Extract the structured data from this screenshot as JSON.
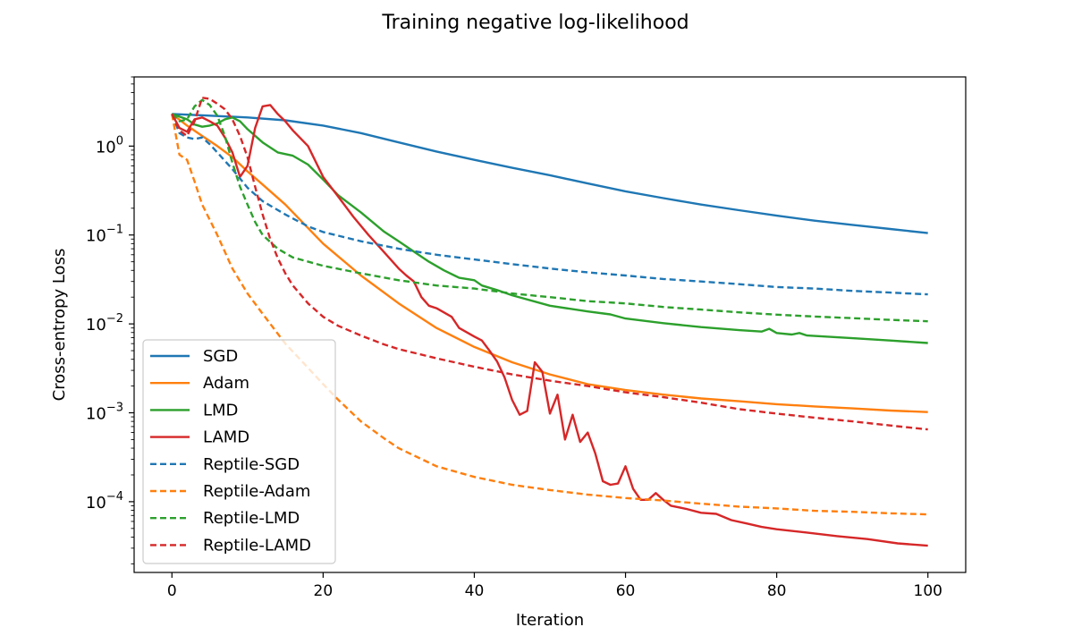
{
  "chart_data": {
    "type": "line",
    "title": "Training negative log-likelihood",
    "xlabel": "Iteration",
    "ylabel": "Cross-entropy Loss",
    "yscale": "log",
    "xlim": [
      -5,
      105
    ],
    "ylim": [
      1.6e-05,
      6.0
    ],
    "xticks": [
      0,
      20,
      40,
      60,
      80,
      100
    ],
    "yticks": [
      {
        "value": 1,
        "base": "10",
        "exp": "0"
      },
      {
        "value": 0.1,
        "base": "10",
        "exp": "−1"
      },
      {
        "value": 0.01,
        "base": "10",
        "exp": "−2"
      },
      {
        "value": 0.001,
        "base": "10",
        "exp": "−3"
      },
      {
        "value": 0.0001,
        "base": "10",
        "exp": "−4"
      }
    ],
    "grid": false,
    "legend": {
      "placement": "lower-left"
    },
    "series": [
      {
        "name": "SGD",
        "color": "#1f77b4",
        "style": "solid",
        "points": [
          [
            0,
            2.3
          ],
          [
            5,
            2.2
          ],
          [
            10,
            2.1
          ],
          [
            15,
            1.95
          ],
          [
            20,
            1.7
          ],
          [
            25,
            1.4
          ],
          [
            30,
            1.1
          ],
          [
            35,
            0.87
          ],
          [
            40,
            0.7
          ],
          [
            45,
            0.57
          ],
          [
            50,
            0.47
          ],
          [
            55,
            0.38
          ],
          [
            60,
            0.31
          ],
          [
            65,
            0.26
          ],
          [
            70,
            0.22
          ],
          [
            75,
            0.19
          ],
          [
            80,
            0.165
          ],
          [
            85,
            0.145
          ],
          [
            90,
            0.13
          ],
          [
            95,
            0.117
          ],
          [
            100,
            0.105
          ]
        ]
      },
      {
        "name": "Adam",
        "color": "#ff7f0e",
        "style": "solid",
        "points": [
          [
            0,
            2.3
          ],
          [
            2,
            1.7
          ],
          [
            4,
            1.3
          ],
          [
            6,
            1.0
          ],
          [
            8,
            0.75
          ],
          [
            10,
            0.52
          ],
          [
            12,
            0.37
          ],
          [
            15,
            0.22
          ],
          [
            18,
            0.12
          ],
          [
            20,
            0.08
          ],
          [
            25,
            0.035
          ],
          [
            30,
            0.017
          ],
          [
            35,
            0.009
          ],
          [
            40,
            0.0055
          ],
          [
            45,
            0.0037
          ],
          [
            50,
            0.0027
          ],
          [
            55,
            0.0021
          ],
          [
            60,
            0.0018
          ],
          [
            65,
            0.0016
          ],
          [
            70,
            0.00145
          ],
          [
            75,
            0.00135
          ],
          [
            80,
            0.00125
          ],
          [
            85,
            0.00118
          ],
          [
            90,
            0.00112
          ],
          [
            95,
            0.00106
          ],
          [
            100,
            0.00102
          ]
        ]
      },
      {
        "name": "LMD",
        "color": "#2ca02c",
        "style": "solid",
        "points": [
          [
            0,
            2.3
          ],
          [
            2,
            2.0
          ],
          [
            3,
            1.75
          ],
          [
            4,
            1.65
          ],
          [
            5,
            1.7
          ],
          [
            6,
            1.8
          ],
          [
            7,
            2.0
          ],
          [
            8,
            2.1
          ],
          [
            9,
            1.9
          ],
          [
            10,
            1.55
          ],
          [
            12,
            1.1
          ],
          [
            14,
            0.85
          ],
          [
            16,
            0.78
          ],
          [
            18,
            0.62
          ],
          [
            20,
            0.42
          ],
          [
            22,
            0.28
          ],
          [
            25,
            0.18
          ],
          [
            28,
            0.11
          ],
          [
            30,
            0.085
          ],
          [
            32,
            0.065
          ],
          [
            34,
            0.05
          ],
          [
            36,
            0.04
          ],
          [
            38,
            0.033
          ],
          [
            40,
            0.031
          ],
          [
            41,
            0.027
          ],
          [
            43,
            0.024
          ],
          [
            45,
            0.021
          ],
          [
            50,
            0.016
          ],
          [
            55,
            0.0138
          ],
          [
            58,
            0.0128
          ],
          [
            60,
            0.0115
          ],
          [
            65,
            0.0102
          ],
          [
            70,
            0.0092
          ],
          [
            75,
            0.0085
          ],
          [
            78,
            0.0082
          ],
          [
            79,
            0.0088
          ],
          [
            80,
            0.0079
          ],
          [
            82,
            0.0076
          ],
          [
            83,
            0.0079
          ],
          [
            84,
            0.0074
          ],
          [
            90,
            0.0069
          ],
          [
            95,
            0.0065
          ],
          [
            100,
            0.0061
          ]
        ]
      },
      {
        "name": "LAMD",
        "color": "#d62728",
        "style": "solid",
        "points": [
          [
            0,
            2.3
          ],
          [
            1,
            1.6
          ],
          [
            2,
            1.45
          ],
          [
            3,
            2.0
          ],
          [
            4,
            2.1
          ],
          [
            5,
            1.9
          ],
          [
            6,
            1.7
          ],
          [
            7,
            1.25
          ],
          [
            8,
            0.85
          ],
          [
            9,
            0.45
          ],
          [
            10,
            0.6
          ],
          [
            11,
            1.6
          ],
          [
            12,
            2.8
          ],
          [
            13,
            2.9
          ],
          [
            14,
            2.3
          ],
          [
            15,
            1.9
          ],
          [
            16,
            1.5
          ],
          [
            18,
            1.0
          ],
          [
            20,
            0.45
          ],
          [
            22,
            0.27
          ],
          [
            24,
            0.16
          ],
          [
            26,
            0.1
          ],
          [
            28,
            0.065
          ],
          [
            30,
            0.042
          ],
          [
            31,
            0.035
          ],
          [
            32,
            0.03
          ],
          [
            33,
            0.02
          ],
          [
            34,
            0.016
          ],
          [
            35,
            0.015
          ],
          [
            37,
            0.012
          ],
          [
            38,
            0.009
          ],
          [
            40,
            0.0072
          ],
          [
            41,
            0.0065
          ],
          [
            42,
            0.005
          ],
          [
            43,
            0.0038
          ],
          [
            44,
            0.0025
          ],
          [
            45,
            0.0014
          ],
          [
            46,
            0.00095
          ],
          [
            47,
            0.00105
          ],
          [
            48,
            0.0037
          ],
          [
            49,
            0.0029
          ],
          [
            50,
            0.00098
          ],
          [
            51,
            0.0016
          ],
          [
            52,
            0.0005
          ],
          [
            53,
            0.00095
          ],
          [
            54,
            0.00047
          ],
          [
            55,
            0.0006
          ],
          [
            56,
            0.00035
          ],
          [
            57,
            0.00017
          ],
          [
            58,
            0.000155
          ],
          [
            59,
            0.00016
          ],
          [
            60,
            0.00025
          ],
          [
            61,
            0.00014
          ],
          [
            62,
            0.000105
          ],
          [
            63,
            0.000105
          ],
          [
            64,
            0.000125
          ],
          [
            65,
            0.000105
          ],
          [
            66,
            9e-05
          ],
          [
            68,
            8.3e-05
          ],
          [
            70,
            7.5e-05
          ],
          [
            72,
            7.3e-05
          ],
          [
            74,
            6.2e-05
          ],
          [
            76,
            5.7e-05
          ],
          [
            78,
            5.2e-05
          ],
          [
            80,
            4.9e-05
          ],
          [
            84,
            4.5e-05
          ],
          [
            88,
            4.1e-05
          ],
          [
            92,
            3.8e-05
          ],
          [
            96,
            3.4e-05
          ],
          [
            100,
            3.2e-05
          ]
        ]
      },
      {
        "name": "Reptile-SGD",
        "color": "#1f77b4",
        "style": "dashed",
        "points": [
          [
            0,
            2.3
          ],
          [
            1,
            1.4
          ],
          [
            2,
            1.25
          ],
          [
            3,
            1.2
          ],
          [
            4,
            1.25
          ],
          [
            5,
            1.05
          ],
          [
            6,
            0.85
          ],
          [
            8,
            0.55
          ],
          [
            10,
            0.34
          ],
          [
            12,
            0.24
          ],
          [
            15,
            0.17
          ],
          [
            18,
            0.125
          ],
          [
            20,
            0.108
          ],
          [
            25,
            0.085
          ],
          [
            30,
            0.07
          ],
          [
            35,
            0.06
          ],
          [
            40,
            0.053
          ],
          [
            45,
            0.047
          ],
          [
            50,
            0.042
          ],
          [
            55,
            0.038
          ],
          [
            60,
            0.035
          ],
          [
            65,
            0.032
          ],
          [
            70,
            0.03
          ],
          [
            75,
            0.028
          ],
          [
            80,
            0.026
          ],
          [
            85,
            0.025
          ],
          [
            90,
            0.0235
          ],
          [
            95,
            0.0225
          ],
          [
            100,
            0.0215
          ]
        ]
      },
      {
        "name": "Reptile-Adam",
        "color": "#ff7f0e",
        "style": "dashed",
        "points": [
          [
            0,
            2.3
          ],
          [
            1,
            0.8
          ],
          [
            2,
            0.7
          ],
          [
            3,
            0.4
          ],
          [
            4,
            0.22
          ],
          [
            6,
            0.1
          ],
          [
            8,
            0.042
          ],
          [
            10,
            0.022
          ],
          [
            12,
            0.013
          ],
          [
            15,
            0.006
          ],
          [
            18,
            0.0032
          ],
          [
            20,
            0.0021
          ],
          [
            22,
            0.0014
          ],
          [
            25,
            0.0008
          ],
          [
            28,
            0.00052
          ],
          [
            30,
            0.0004
          ],
          [
            35,
            0.00025
          ],
          [
            40,
            0.00019
          ],
          [
            45,
            0.000155
          ],
          [
            50,
            0.000135
          ],
          [
            55,
            0.00012
          ],
          [
            60,
            0.00011
          ],
          [
            65,
            0.000103
          ],
          [
            70,
            9.5e-05
          ],
          [
            75,
            8.8e-05
          ],
          [
            80,
            8.4e-05
          ],
          [
            85,
            7.9e-05
          ],
          [
            90,
            7.7e-05
          ],
          [
            95,
            7.4e-05
          ],
          [
            100,
            7.2e-05
          ]
        ]
      },
      {
        "name": "Reptile-LMD",
        "color": "#2ca02c",
        "style": "dashed",
        "points": [
          [
            0,
            2.3
          ],
          [
            1,
            1.9
          ],
          [
            2,
            2.0
          ],
          [
            3,
            2.8
          ],
          [
            4,
            3.3
          ],
          [
            5,
            2.9
          ],
          [
            6,
            2.2
          ],
          [
            7,
            1.3
          ],
          [
            8,
            0.65
          ],
          [
            9,
            0.35
          ],
          [
            10,
            0.22
          ],
          [
            11,
            0.14
          ],
          [
            12,
            0.1
          ],
          [
            14,
            0.07
          ],
          [
            16,
            0.056
          ],
          [
            20,
            0.045
          ],
          [
            25,
            0.037
          ],
          [
            30,
            0.031
          ],
          [
            35,
            0.027
          ],
          [
            40,
            0.025
          ],
          [
            45,
            0.022
          ],
          [
            50,
            0.02
          ],
          [
            55,
            0.018
          ],
          [
            60,
            0.017
          ],
          [
            65,
            0.0155
          ],
          [
            70,
            0.0145
          ],
          [
            75,
            0.0135
          ],
          [
            80,
            0.0127
          ],
          [
            85,
            0.0121
          ],
          [
            90,
            0.0116
          ],
          [
            95,
            0.0111
          ],
          [
            100,
            0.0107
          ]
        ]
      },
      {
        "name": "Reptile-LAMD",
        "color": "#d62728",
        "style": "dashed",
        "points": [
          [
            0,
            2.3
          ],
          [
            1,
            1.5
          ],
          [
            2,
            1.3
          ],
          [
            3,
            1.9
          ],
          [
            4,
            3.5
          ],
          [
            5,
            3.4
          ],
          [
            6,
            3.0
          ],
          [
            7,
            2.6
          ],
          [
            8,
            2.0
          ],
          [
            9,
            1.3
          ],
          [
            10,
            0.75
          ],
          [
            11,
            0.35
          ],
          [
            12,
            0.17
          ],
          [
            13,
            0.09
          ],
          [
            14,
            0.055
          ],
          [
            15,
            0.037
          ],
          [
            16,
            0.027
          ],
          [
            18,
            0.017
          ],
          [
            20,
            0.012
          ],
          [
            22,
            0.0095
          ],
          [
            25,
            0.0074
          ],
          [
            28,
            0.0059
          ],
          [
            30,
            0.0052
          ],
          [
            35,
            0.0041
          ],
          [
            40,
            0.0033
          ],
          [
            45,
            0.0027
          ],
          [
            50,
            0.0023
          ],
          [
            55,
            0.002
          ],
          [
            60,
            0.0017
          ],
          [
            65,
            0.0015
          ],
          [
            70,
            0.0013
          ],
          [
            75,
            0.0011
          ],
          [
            80,
            0.00098
          ],
          [
            85,
            0.00088
          ],
          [
            90,
            0.0008
          ],
          [
            95,
            0.00072
          ],
          [
            100,
            0.00065
          ]
        ]
      }
    ]
  }
}
